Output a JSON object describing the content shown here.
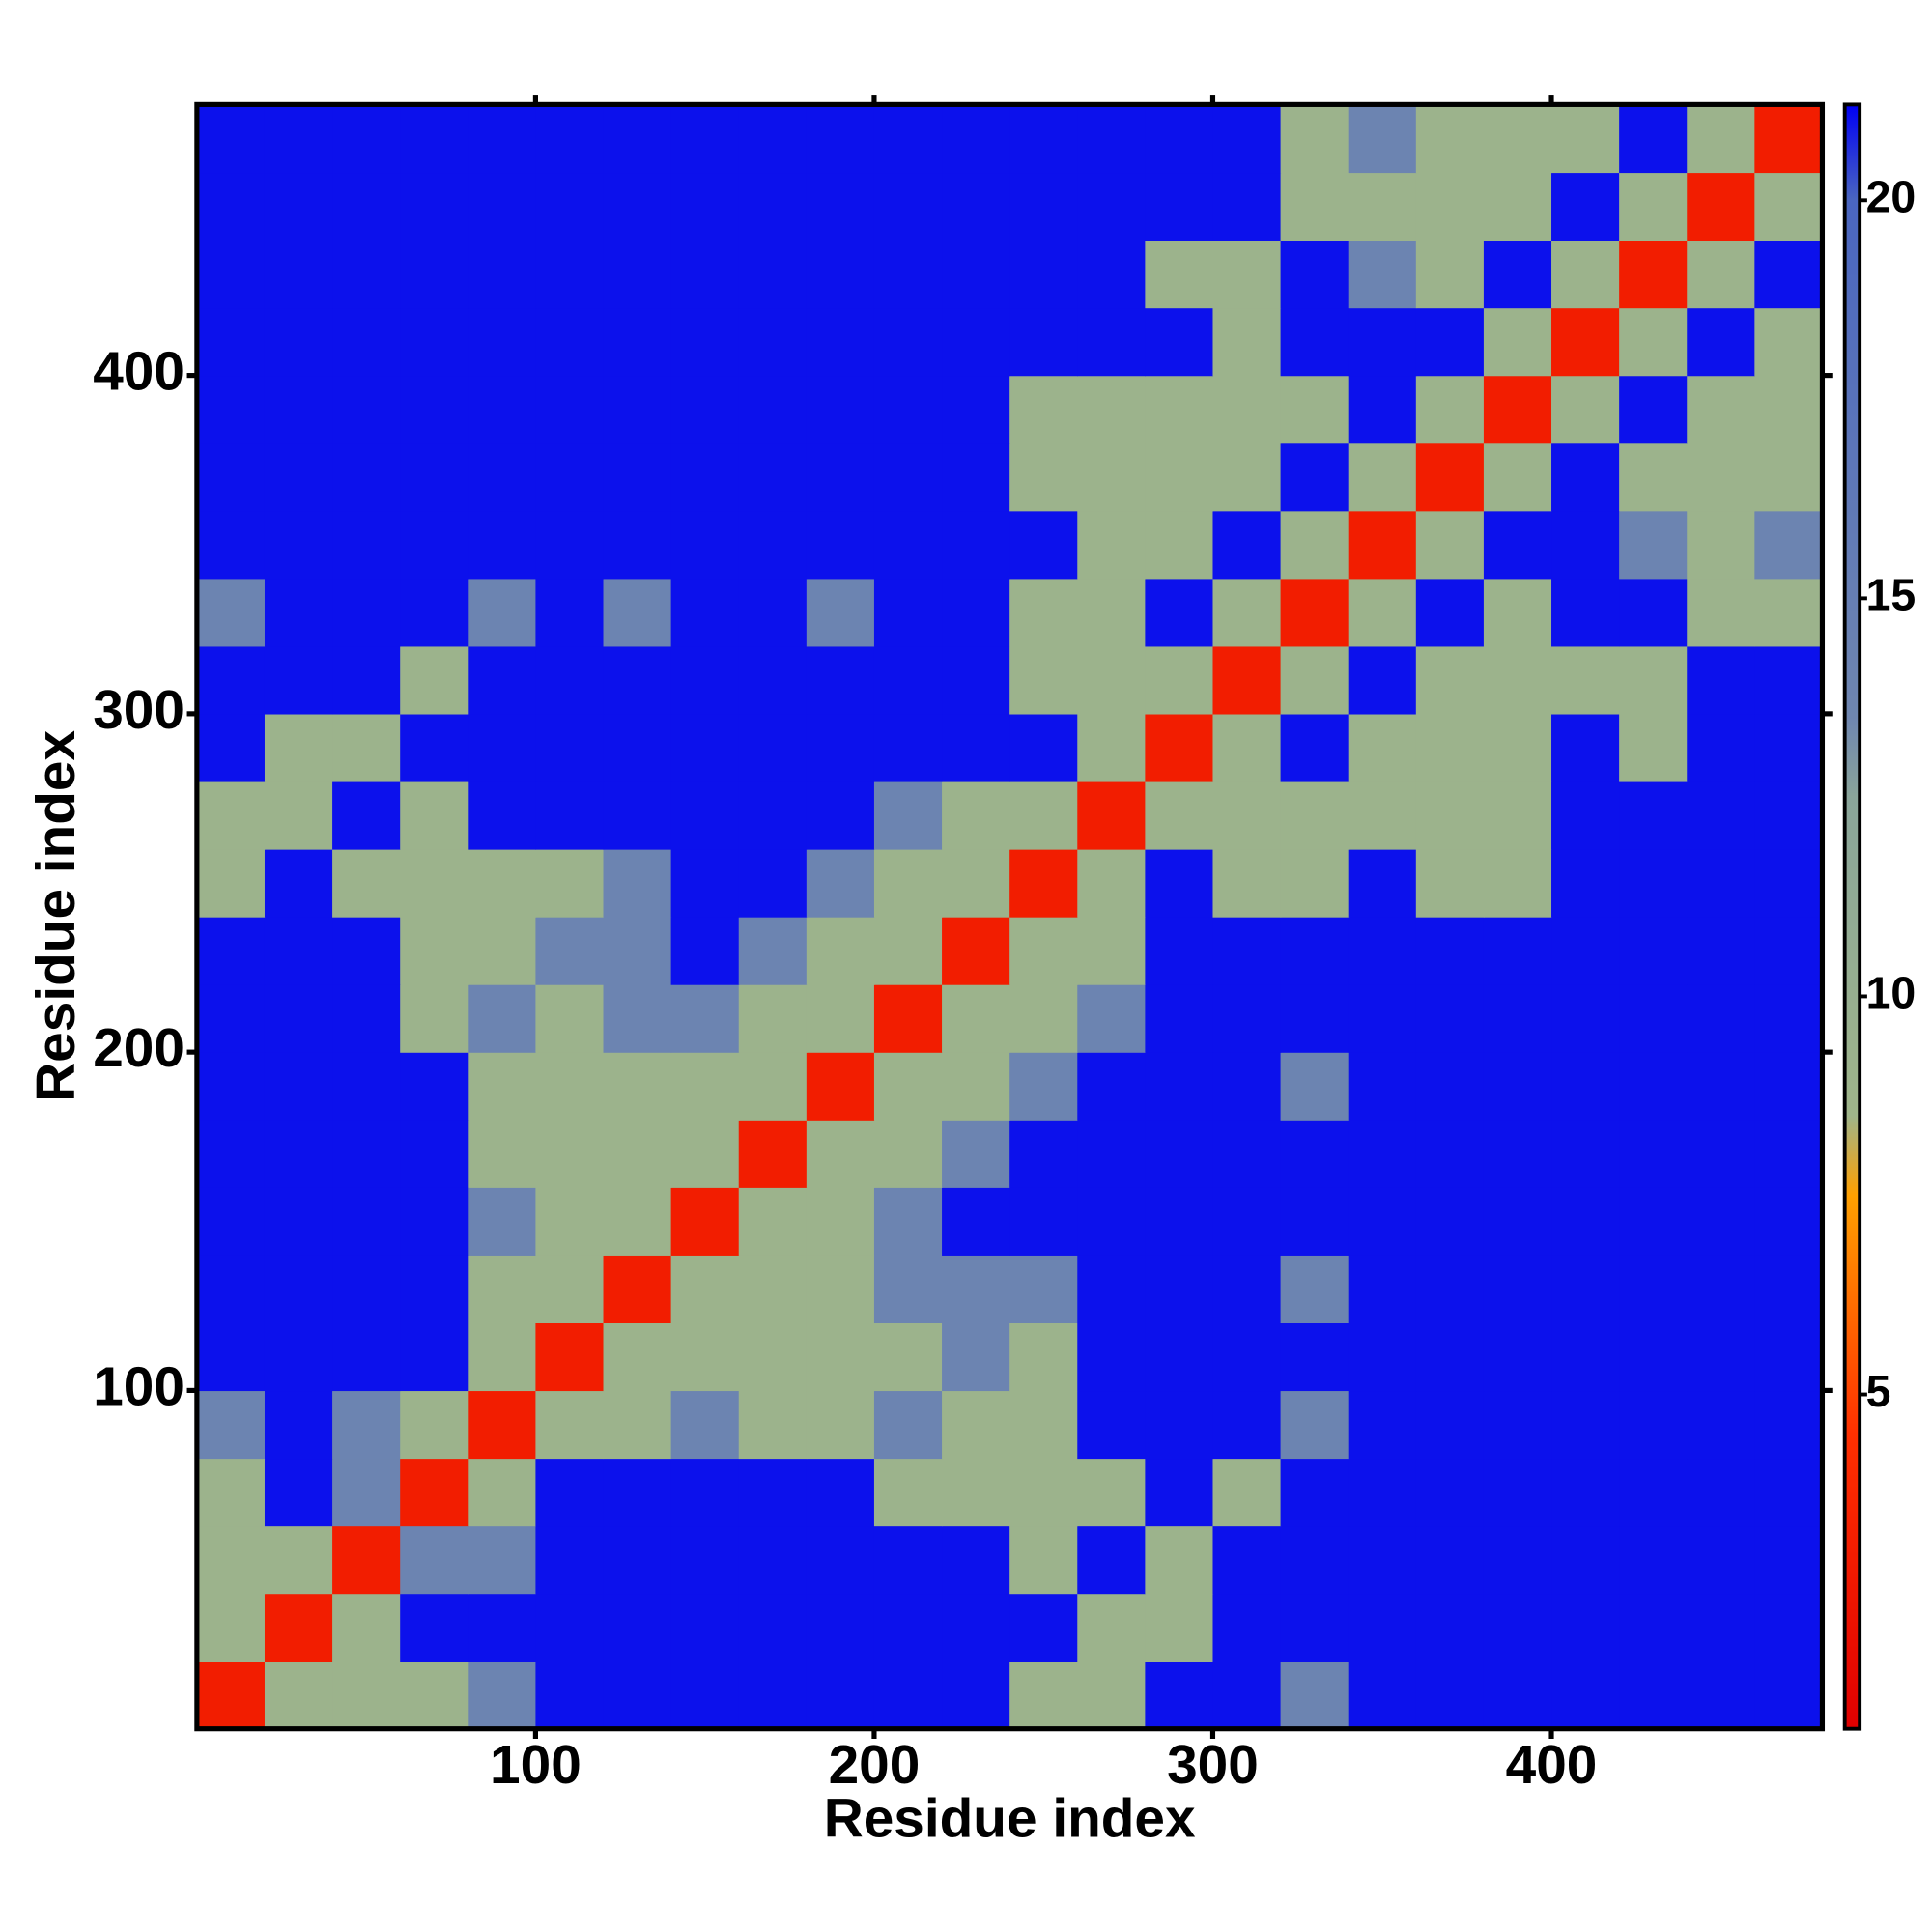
{
  "chart_data": {
    "type": "heatmap",
    "xlabel": "Residue index",
    "ylabel": "Residue index",
    "xbins": [
      0,
      20,
      40,
      60,
      80,
      100,
      120,
      140,
      160,
      180,
      200,
      220,
      240,
      260,
      280,
      300,
      320,
      340,
      360,
      380,
      400,
      420,
      440,
      460,
      480
    ],
    "ybins": [
      0,
      20,
      40,
      60,
      80,
      100,
      120,
      140,
      160,
      180,
      200,
      220,
      240,
      260,
      280,
      300,
      320,
      340,
      360,
      380,
      400,
      420,
      440,
      460,
      480
    ],
    "z": [
      [
        3,
        9,
        9,
        9,
        14,
        21,
        21,
        21,
        21,
        21,
        21,
        21,
        9,
        9,
        21,
        21,
        14,
        21,
        21,
        21,
        21,
        21,
        21,
        21
      ],
      [
        9,
        3,
        9,
        21,
        21,
        21,
        21,
        21,
        21,
        21,
        21,
        21,
        21,
        9,
        9,
        21,
        21,
        21,
        21,
        21,
        21,
        21,
        21,
        21
      ],
      [
        9,
        9,
        3,
        14,
        14,
        21,
        21,
        21,
        21,
        21,
        21,
        21,
        9,
        21,
        9,
        21,
        21,
        21,
        21,
        21,
        21,
        21,
        21,
        21
      ],
      [
        9,
        21,
        14,
        3,
        9,
        21,
        21,
        21,
        21,
        21,
        9,
        9,
        9,
        9,
        21,
        9,
        21,
        21,
        21,
        21,
        21,
        21,
        21,
        21
      ],
      [
        14,
        21,
        14,
        9,
        3,
        9,
        9,
        14,
        9,
        9,
        14,
        9,
        9,
        21,
        21,
        21,
        14,
        21,
        21,
        21,
        21,
        21,
        21,
        21
      ],
      [
        21,
        21,
        21,
        21,
        9,
        3,
        9,
        9,
        9,
        9,
        9,
        14,
        9,
        21,
        21,
        21,
        21,
        21,
        21,
        21,
        21,
        21,
        21,
        21
      ],
      [
        21,
        21,
        21,
        21,
        9,
        9,
        3,
        9,
        9,
        9,
        14,
        14,
        14,
        21,
        21,
        21,
        14,
        21,
        21,
        21,
        21,
        21,
        21,
        21
      ],
      [
        21,
        21,
        21,
        21,
        14,
        9,
        9,
        3,
        9,
        9,
        14,
        21,
        21,
        21,
        21,
        21,
        21,
        21,
        21,
        21,
        21,
        21,
        21,
        21
      ],
      [
        21,
        21,
        21,
        21,
        9,
        9,
        9,
        9,
        3,
        9,
        9,
        14,
        21,
        21,
        21,
        21,
        21,
        21,
        21,
        21,
        21,
        21,
        21,
        21
      ],
      [
        21,
        21,
        21,
        21,
        9,
        9,
        9,
        9,
        9,
        3,
        9,
        9,
        14,
        21,
        21,
        21,
        14,
        21,
        21,
        21,
        21,
        21,
        21,
        21
      ],
      [
        21,
        21,
        21,
        9,
        14,
        9,
        14,
        14,
        9,
        9,
        3,
        9,
        9,
        14,
        21,
        21,
        21,
        21,
        21,
        21,
        21,
        21,
        21,
        21
      ],
      [
        21,
        21,
        21,
        9,
        9,
        14,
        14,
        21,
        14,
        9,
        9,
        3,
        9,
        9,
        21,
        21,
        21,
        21,
        21,
        21,
        21,
        21,
        21,
        21
      ],
      [
        9,
        21,
        9,
        9,
        9,
        9,
        14,
        21,
        21,
        14,
        9,
        9,
        3,
        9,
        21,
        9,
        9,
        21,
        9,
        9,
        21,
        21,
        21,
        21
      ],
      [
        9,
        9,
        21,
        9,
        21,
        21,
        21,
        21,
        21,
        21,
        14,
        9,
        9,
        3,
        9,
        9,
        9,
        9,
        9,
        9,
        21,
        21,
        21,
        21
      ],
      [
        21,
        9,
        9,
        21,
        21,
        21,
        21,
        21,
        21,
        21,
        21,
        21,
        21,
        9,
        3,
        9,
        21,
        9,
        9,
        9,
        21,
        9,
        21,
        21
      ],
      [
        21,
        21,
        21,
        9,
        21,
        21,
        21,
        21,
        21,
        21,
        21,
        21,
        9,
        9,
        9,
        3,
        9,
        21,
        9,
        9,
        9,
        9,
        21,
        21
      ],
      [
        14,
        21,
        21,
        21,
        14,
        21,
        14,
        21,
        21,
        14,
        21,
        21,
        9,
        9,
        21,
        9,
        3,
        9,
        21,
        9,
        21,
        21,
        9,
        9
      ],
      [
        21,
        21,
        21,
        21,
        21,
        21,
        21,
        21,
        21,
        21,
        21,
        21,
        21,
        9,
        9,
        21,
        9,
        3,
        9,
        21,
        21,
        14,
        9,
        14
      ],
      [
        21,
        21,
        21,
        21,
        21,
        21,
        21,
        21,
        21,
        21,
        21,
        21,
        9,
        9,
        9,
        9,
        21,
        9,
        3,
        9,
        21,
        9,
        9,
        9
      ],
      [
        21,
        21,
        21,
        21,
        21,
        21,
        21,
        21,
        21,
        21,
        21,
        21,
        9,
        9,
        9,
        9,
        9,
        21,
        9,
        3,
        9,
        21,
        9,
        9
      ],
      [
        21,
        21,
        21,
        21,
        21,
        21,
        21,
        21,
        21,
        21,
        21,
        21,
        21,
        21,
        21,
        9,
        21,
        21,
        21,
        9,
        3,
        9,
        21,
        9
      ],
      [
        21,
        21,
        21,
        21,
        21,
        21,
        21,
        21,
        21,
        21,
        21,
        21,
        21,
        21,
        9,
        9,
        21,
        14,
        9,
        21,
        9,
        3,
        9,
        21
      ],
      [
        21,
        21,
        21,
        21,
        21,
        21,
        21,
        21,
        21,
        21,
        21,
        21,
        21,
        21,
        21,
        21,
        9,
        9,
        9,
        9,
        21,
        9,
        3,
        9
      ],
      [
        21,
        21,
        21,
        21,
        21,
        21,
        21,
        21,
        21,
        21,
        21,
        21,
        21,
        21,
        21,
        21,
        9,
        14,
        9,
        9,
        9,
        21,
        9,
        3
      ]
    ],
    "xlim": [
      0,
      480
    ],
    "ylim": [
      0,
      480
    ],
    "xticks": [
      100,
      200,
      300,
      400
    ],
    "yticks": [
      100,
      200,
      300,
      400
    ],
    "zlim": [
      0.8,
      21.2
    ],
    "zticks": [
      5,
      10,
      15,
      20
    ],
    "colorscale": [
      [
        0.8,
        "#e00000"
      ],
      [
        4.5,
        "#ff3000"
      ],
      [
        7.5,
        "#ffa000"
      ],
      [
        8.5,
        "#9fb58a"
      ],
      [
        12.5,
        "#8aa59a"
      ],
      [
        13.5,
        "#6f86b0"
      ],
      [
        20,
        "#4a66c0"
      ],
      [
        21.2,
        "#0000f5"
      ]
    ]
  }
}
